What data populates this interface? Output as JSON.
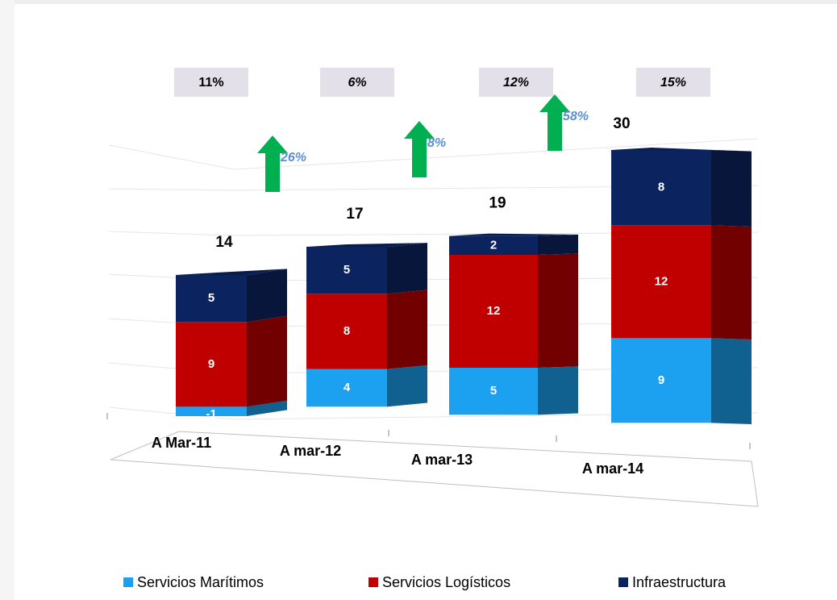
{
  "chart_data": {
    "type": "bar3d_stacked",
    "categories": [
      "A Mar-11",
      "A mar-12",
      "A mar-13",
      "A mar-14"
    ],
    "series": [
      {
        "name": "Servicios Marítimos",
        "color": "#1ba1ef",
        "values": [
          -1,
          4,
          5,
          9
        ]
      },
      {
        "name": "Servicios Logísticos",
        "color": "#c00000",
        "values": [
          9,
          8,
          12,
          12
        ]
      },
      {
        "name": "Infraestructura",
        "color": "#0b2460",
        "values": [
          5,
          5,
          2,
          8
        ]
      }
    ],
    "totals": [
      14,
      17,
      19,
      30
    ],
    "margins": {
      "values": [
        11,
        6,
        12,
        15
      ],
      "value_labels": [
        "11%",
        "6%",
        "12%",
        "15%"
      ]
    },
    "growth": {
      "values": [
        26,
        8,
        58
      ],
      "value_labels": [
        "26%",
        "8%",
        "58%"
      ]
    },
    "ylim": [
      -1,
      35
    ],
    "legend": "bottom"
  }
}
